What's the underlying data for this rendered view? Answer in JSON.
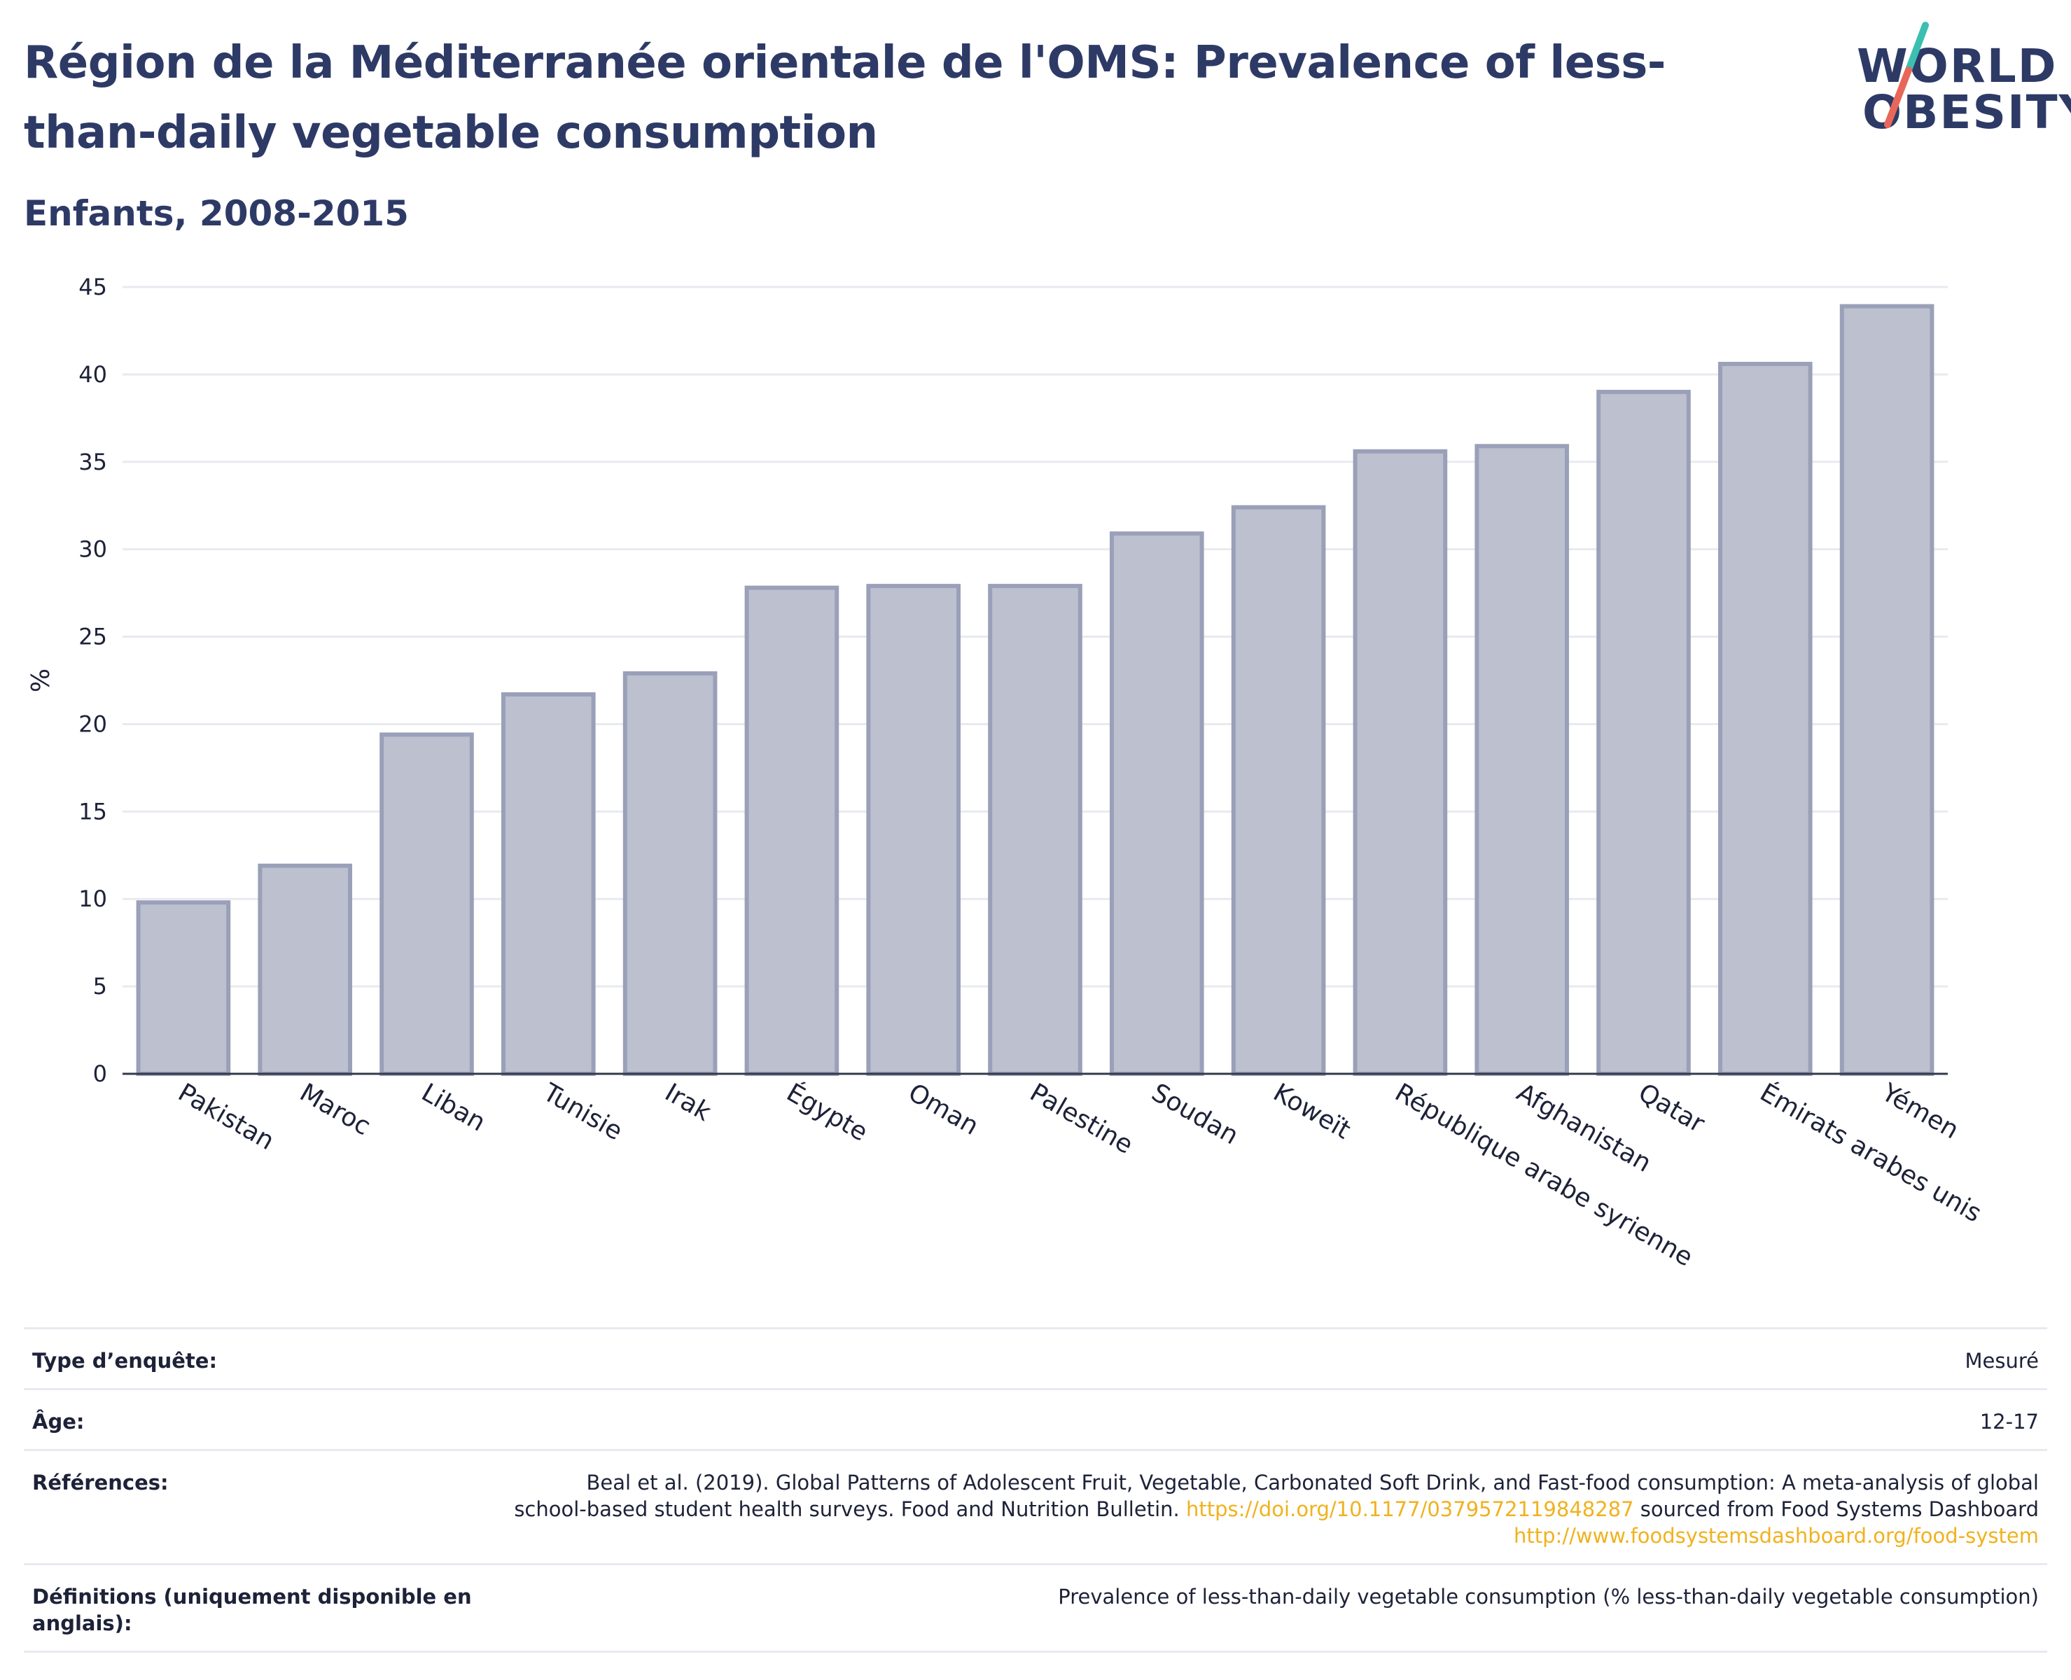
{
  "header": {
    "title": "Région de la Méditerranée orientale de l'OMS: Prevalence of less-than-daily vegetable consumption",
    "subtitle": "Enfants, 2008-2015"
  },
  "logo": {
    "line1": "WORLD",
    "line2": "OBESITY",
    "colors": {
      "text": "#2e3a66",
      "slash_top": "#3bbfb0",
      "slash_bottom": "#e8675a"
    }
  },
  "colors": {
    "bar_fill": "#bcc0cf",
    "bar_stroke": "#9aa0b8",
    "grid": "#e9eaf0",
    "text": "#1d2238",
    "title": "#2e3a66",
    "link": "#f0b21e"
  },
  "chart_data": {
    "type": "bar",
    "title": "Région de la Méditerranée orientale de l'OMS: Prevalence of less-than-daily vegetable consumption",
    "subtitle": "Enfants, 2008-2015",
    "xlabel": "",
    "ylabel": "%",
    "ylim": [
      0,
      45
    ],
    "yticks": [
      0,
      5,
      10,
      15,
      20,
      25,
      30,
      35,
      40,
      45
    ],
    "grid": true,
    "categories": [
      "Pakistan",
      "Maroc",
      "Liban",
      "Tunisie",
      "Irak",
      "Égypte",
      "Oman",
      "Palestine",
      "Soudan",
      "Koweït",
      "République arabe syrienne",
      "Afghanistan",
      "Qatar",
      "Émirats arabes unis",
      "Yémen"
    ],
    "values": [
      9.8,
      11.9,
      19.4,
      21.7,
      22.9,
      27.8,
      27.9,
      27.9,
      30.9,
      32.4,
      35.6,
      35.9,
      39.0,
      40.6,
      43.9
    ]
  },
  "table": {
    "rows": [
      {
        "label": "Type d’enquête:",
        "value": "Mesuré"
      },
      {
        "label": "Âge:",
        "value": "12-17"
      },
      {
        "label": "Références:",
        "value_parts": [
          "Beal et al. (2019). Global Patterns of Adolescent Fruit, Vegetable, Carbonated Soft Drink, and Fast-food consumption: A meta-analysis of global school-based student health surveys. Food and Nutrition Bulletin. ",
          "https://doi.org/10.1177/0379572119848287",
          " sourced from Food Systems Dashboard ",
          "http://www.foodsystemsdashboard.org/food-system"
        ]
      },
      {
        "label": "Définitions (uniquement disponible en anglais):",
        "value": "Prevalence of less-than-daily vegetable consumption (% less-than-daily vegetable consumption)"
      }
    ]
  }
}
